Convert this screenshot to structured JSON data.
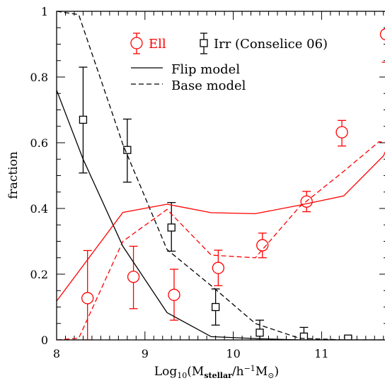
{
  "chart_data": {
    "type": "line",
    "title": "",
    "xlabel_parts": {
      "pre": "Log",
      "sub1": "10",
      "mid": "(M",
      "sub2": "stellar",
      "post": "/h",
      "sup": "−1",
      "m": "M",
      "sun": "⊙",
      "close": ")"
    },
    "ylabel": "fraction",
    "xlim": [
      8.0,
      11.75
    ],
    "ylim": [
      0,
      1
    ],
    "x_ticks": [
      "8",
      "9",
      "10",
      "11"
    ],
    "y_ticks": [
      "0",
      "0.2",
      "0.4",
      "0.6",
      "0.8",
      "1"
    ],
    "legend": {
      "ell": "Ell",
      "irr": "Irr (Conselice 06)",
      "flip": "Flip model",
      "base": "Base model"
    },
    "colors": {
      "ell": "#ff0000",
      "irr": "#000000"
    },
    "series": [
      {
        "name": "Ell",
        "kind": "points",
        "marker": "circle",
        "color": "#ff0000",
        "x": [
          8.35,
          8.87,
          9.33,
          9.83,
          10.33,
          10.83,
          11.23,
          11.73
        ],
        "y": [
          0.127,
          0.192,
          0.137,
          0.219,
          0.288,
          0.421,
          0.632,
          0.93
        ],
        "ylo": [
          0.0,
          0.095,
          0.06,
          0.165,
          0.25,
          0.39,
          0.59,
          0.845
        ],
        "yhi": [
          0.272,
          0.285,
          0.215,
          0.273,
          0.325,
          0.452,
          0.668,
          1.0
        ]
      },
      {
        "name": "Irr (Conselice 06)",
        "kind": "points",
        "marker": "square",
        "color": "#000000",
        "x": [
          8.3,
          8.8,
          9.3,
          9.8,
          10.3,
          10.8,
          11.3,
          11.8
        ],
        "y": [
          0.67,
          0.578,
          0.342,
          0.1,
          0.022,
          0.01,
          0.004,
          0.003
        ],
        "ylo": [
          0.508,
          0.48,
          0.27,
          0.045,
          0.0,
          0.0,
          0.0,
          0.0
        ],
        "yhi": [
          0.83,
          0.672,
          0.418,
          0.155,
          0.06,
          0.038,
          0.008,
          0.006
        ]
      },
      {
        "name": "Irr Flip model",
        "kind": "line",
        "dash": "solid",
        "color": "#000000",
        "x": [
          8.0,
          8.3,
          8.75,
          9.25,
          9.75,
          10.25,
          10.75,
          11.25,
          11.75
        ],
        "y": [
          0.76,
          0.55,
          0.285,
          0.083,
          0.01,
          0.004,
          0.0,
          0.0,
          0.0
        ]
      },
      {
        "name": "Irr Base model",
        "kind": "line",
        "dash": "dashed",
        "color": "#000000",
        "x": [
          8.0,
          8.25,
          8.75,
          9.25,
          9.75,
          10.25,
          10.75,
          11.25,
          11.75
        ],
        "y": [
          1.0,
          0.99,
          0.595,
          0.275,
          0.165,
          0.05,
          0.005,
          0.0,
          0.0
        ]
      },
      {
        "name": "Ell Flip model",
        "kind": "line",
        "dash": "solid",
        "color": "#ff0000",
        "x": [
          8.0,
          8.75,
          9.25,
          9.75,
          10.25,
          10.75,
          11.25,
          11.7,
          11.75
        ],
        "y": [
          0.118,
          0.388,
          0.413,
          0.387,
          0.384,
          0.41,
          0.438,
          0.56,
          0.59
        ]
      },
      {
        "name": "Ell Base model",
        "kind": "line",
        "dash": "dashed",
        "color": "#ff0000",
        "x": [
          8.0,
          8.25,
          8.75,
          9.25,
          9.75,
          10.25,
          10.75,
          11.25,
          11.65,
          11.75
        ],
        "y": [
          0.0,
          0.005,
          0.3,
          0.397,
          0.258,
          0.25,
          0.405,
          0.513,
          0.603,
          0.6
        ]
      }
    ]
  }
}
